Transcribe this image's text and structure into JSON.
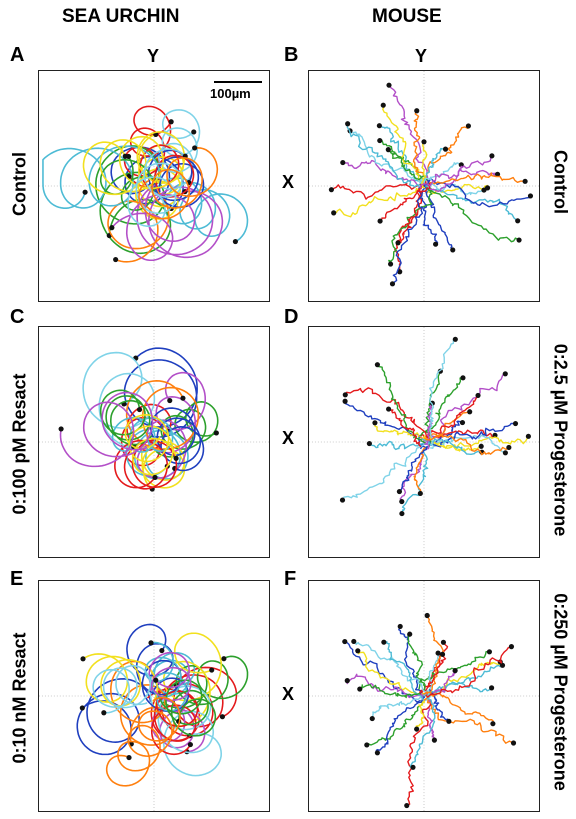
{
  "columns": {
    "left": "SEA URCHIN",
    "right": "MOUSE"
  },
  "axis": {
    "y": "Y",
    "x": "X"
  },
  "panels": [
    {
      "letter": "A",
      "row_label": "Control",
      "side": "left",
      "seed": 11,
      "style": "circles",
      "n": 16
    },
    {
      "letter": "B",
      "row_label": "Control",
      "side": "right",
      "seed": 21,
      "style": "wiggle",
      "n": 30
    },
    {
      "letter": "C",
      "row_label": "0:100 pM Resact",
      "side": "left",
      "seed": 31,
      "style": "circles",
      "n": 14
    },
    {
      "letter": "D",
      "row_label": "0:2.5 µM Progesterone",
      "side": "right",
      "seed": 41,
      "style": "wiggle",
      "n": 26
    },
    {
      "letter": "E",
      "row_label": "0:10 nM Resact",
      "side": "left",
      "seed": 51,
      "style": "circles",
      "n": 16
    },
    {
      "letter": "F",
      "row_label": "0:250 µM Progesterone",
      "side": "right",
      "seed": 61,
      "style": "wiggle",
      "n": 28
    }
  ],
  "scalebar": {
    "label": "100µm"
  },
  "colors": [
    "#1f3fbf",
    "#e41a1c",
    "#4dbbd5",
    "#2ca02c",
    "#f2e01e",
    "#b34fc8",
    "#7fd3e8",
    "#ff7f0e"
  ]
}
